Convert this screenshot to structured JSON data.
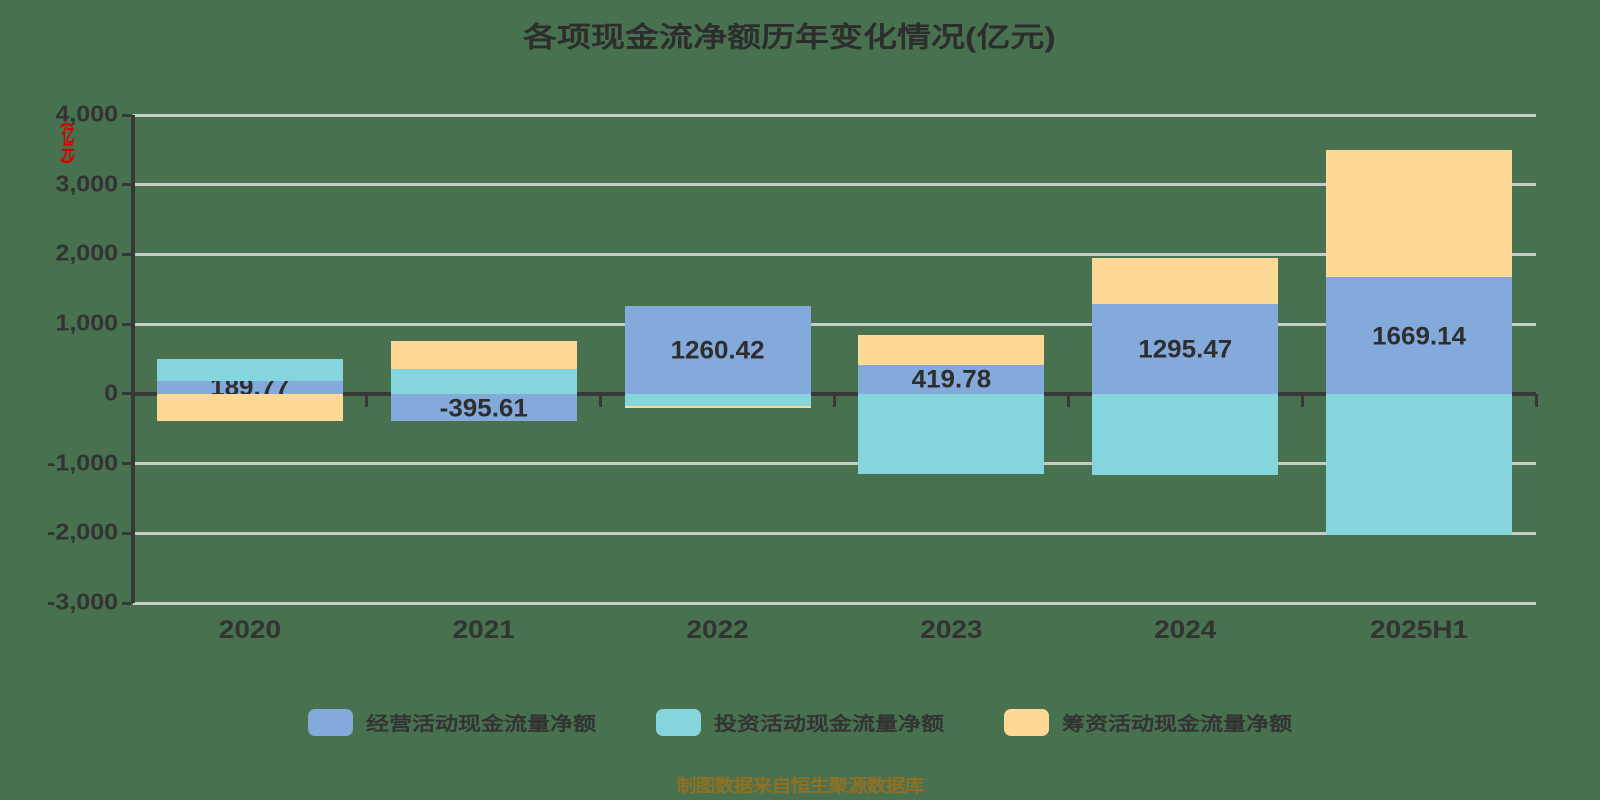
{
  "title": "各项现金流净额历年变化情况(亿元)",
  "y_axis": {
    "unit_label": "(亿元)",
    "tick_labels": [
      "4,000",
      "3,000",
      "2,000",
      "1,000",
      "0",
      "-1,000",
      "-2,000",
      "-3,000"
    ]
  },
  "source_note": "制图数据来自恒生聚源数据库",
  "colors": {
    "background": "#47714F",
    "gridline": "#C6CCC6",
    "axis": "#383838",
    "text": "#333333",
    "unit_label": "#D40000",
    "source_note": "#8E7125",
    "series_operating": "#83AADB",
    "series_investing": "#85D6DC",
    "series_financing": "#FDD995"
  },
  "chart_data": {
    "type": "bar",
    "stacked": true,
    "title": "各项现金流净额历年变化情况(亿元)",
    "xlabel": "",
    "ylabel": "(亿元)",
    "ylim": [
      -3000,
      4000
    ],
    "y_step": 1000,
    "grid": true,
    "legend_position": "bottom",
    "categories": [
      "2020",
      "2021",
      "2022",
      "2023",
      "2024",
      "2025H1"
    ],
    "series": [
      {
        "key": "operating",
        "name": "经营活动现金流量净额",
        "color": "#83AADB",
        "values": [
          189.77,
          -395.61,
          1260.42,
          419.78,
          1295.47,
          1669.14
        ],
        "labeled": true
      },
      {
        "key": "investing",
        "name": "投资活动现金流量净额",
        "color": "#85D6DC",
        "values": [
          310,
          360,
          -180,
          -1150,
          -1160,
          -2030
        ],
        "labeled": false
      },
      {
        "key": "financing",
        "name": "筹资活动现金流量净额",
        "color": "#FDD995",
        "values": [
          -390,
          395,
          -25,
          420,
          650,
          1830
        ],
        "labeled": false
      }
    ],
    "value_labels": [
      "189.77",
      "-395.61",
      "1260.42",
      "419.78",
      "1295.47",
      "1669.14"
    ]
  }
}
